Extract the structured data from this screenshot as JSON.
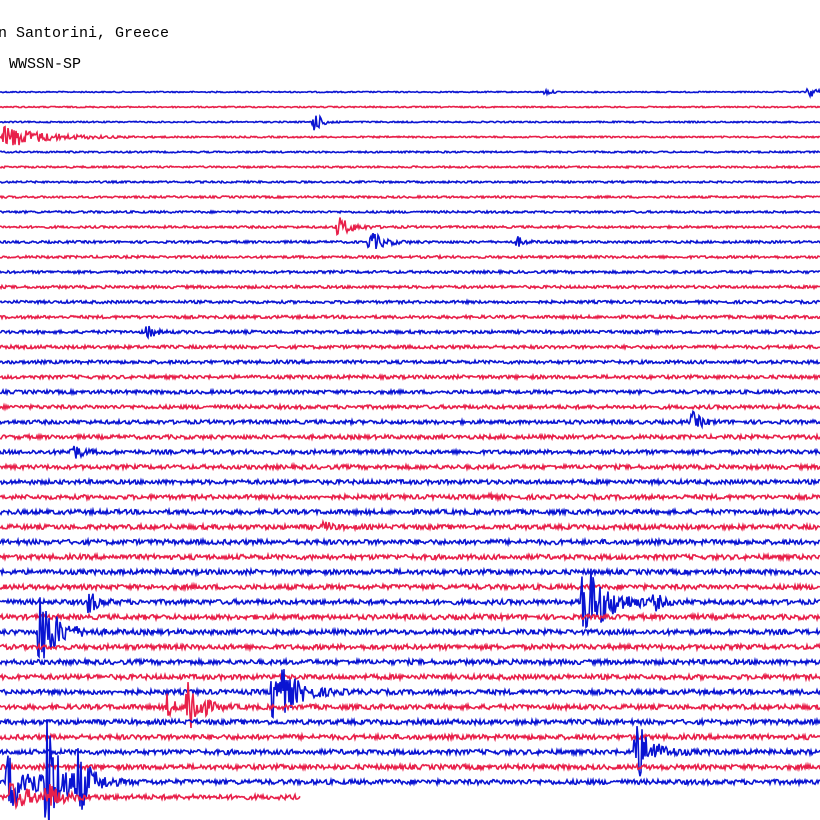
{
  "header": {
    "station": "n Santorini, Greece",
    "instrument": "WWSSN-SP"
  }
}
